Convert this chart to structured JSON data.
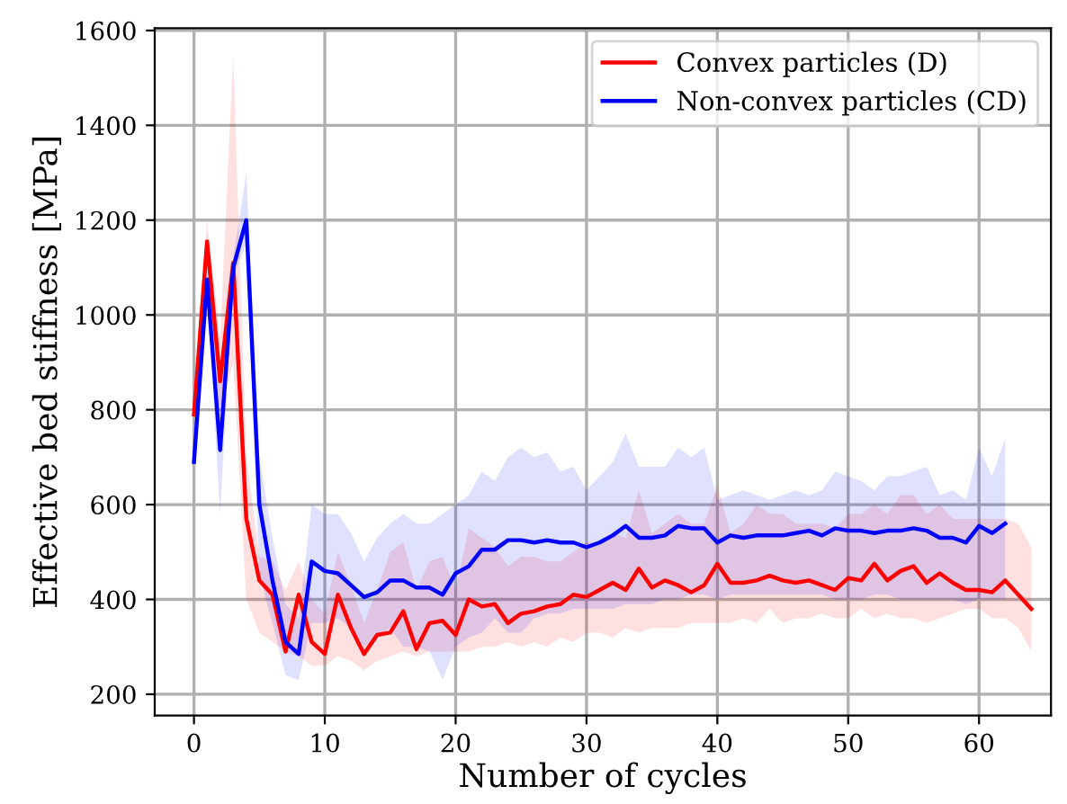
{
  "chart_data": {
    "type": "line",
    "xlabel": "Number of cycles",
    "ylabel": "Effective bed stiffness [MPa]",
    "xlim": [
      -3,
      65.5
    ],
    "ylim": [
      155,
      1605
    ],
    "xticks": [
      0,
      10,
      20,
      30,
      40,
      50,
      60
    ],
    "yticks": [
      200,
      400,
      600,
      800,
      1000,
      1200,
      1400,
      1600
    ],
    "grid": true,
    "legend": "top right",
    "marker": "none",
    "line_style": "solid",
    "series": [
      {
        "name": "Convex particles (D)",
        "color": "#ff0000",
        "x": [
          0,
          1,
          2,
          3,
          4,
          5,
          6,
          7,
          8,
          9,
          10,
          11,
          12,
          13,
          14,
          15,
          16,
          17,
          18,
          19,
          20,
          21,
          22,
          23,
          24,
          25,
          26,
          27,
          28,
          29,
          30,
          31,
          32,
          33,
          34,
          35,
          36,
          37,
          38,
          39,
          40,
          41,
          42,
          43,
          44,
          45,
          46,
          47,
          48,
          49,
          50,
          51,
          52,
          53,
          54,
          55,
          56,
          57,
          58,
          59,
          60,
          61,
          62,
          63,
          64
        ],
        "values": [
          790,
          1155,
          860,
          1110,
          570,
          440,
          410,
          290,
          410,
          310,
          285,
          410,
          340,
          285,
          325,
          330,
          375,
          295,
          350,
          355,
          325,
          400,
          385,
          390,
          350,
          370,
          375,
          385,
          390,
          410,
          405,
          420,
          435,
          420,
          465,
          425,
          440,
          430,
          415,
          430,
          475,
          435,
          435,
          440,
          450,
          440,
          435,
          440,
          430,
          420,
          445,
          440,
          475,
          440,
          460,
          470,
          435,
          455,
          435,
          420,
          420,
          415,
          440,
          410,
          380
        ],
        "lower": [
          790,
          1100,
          800,
          900,
          400,
          330,
          310,
          290,
          280,
          260,
          260,
          280,
          270,
          250,
          270,
          280,
          290,
          280,
          290,
          290,
          290,
          290,
          300,
          300,
          310,
          300,
          310,
          300,
          320,
          310,
          330,
          330,
          320,
          340,
          330,
          340,
          340,
          340,
          350,
          350,
          350,
          350,
          360,
          350,
          380,
          350,
          360,
          360,
          370,
          360,
          360,
          380,
          360,
          370,
          360,
          360,
          350,
          360,
          370,
          380,
          380,
          360,
          360,
          340,
          290
        ],
        "upper": [
          790,
          1200,
          950,
          1550,
          700,
          490,
          480,
          420,
          480,
          400,
          370,
          500,
          430,
          350,
          420,
          500,
          520,
          420,
          480,
          490,
          420,
          550,
          530,
          510,
          470,
          490,
          490,
          480,
          480,
          500,
          520,
          520,
          540,
          530,
          630,
          540,
          560,
          580,
          560,
          560,
          640,
          540,
          560,
          600,
          580,
          580,
          560,
          560,
          560,
          550,
          580,
          580,
          600,
          580,
          620,
          620,
          580,
          600,
          570,
          570,
          570,
          570,
          570,
          560,
          510
        ]
      },
      {
        "name": "Non-convex particles (CD)",
        "color": "#0000ff",
        "x": [
          0,
          1,
          2,
          3,
          4,
          5,
          6,
          7,
          8,
          9,
          10,
          11,
          12,
          13,
          14,
          15,
          16,
          17,
          18,
          19,
          20,
          21,
          22,
          23,
          24,
          25,
          26,
          27,
          28,
          29,
          30,
          31,
          32,
          33,
          34,
          35,
          36,
          37,
          38,
          39,
          40,
          41,
          42,
          43,
          44,
          45,
          46,
          47,
          48,
          49,
          50,
          51,
          52,
          53,
          54,
          55,
          56,
          57,
          58,
          59,
          60,
          61,
          62
        ],
        "values": [
          690,
          1075,
          715,
          1100,
          1200,
          600,
          440,
          310,
          285,
          480,
          460,
          455,
          430,
          405,
          415,
          440,
          440,
          425,
          425,
          410,
          455,
          470,
          505,
          505,
          525,
          525,
          520,
          525,
          520,
          520,
          510,
          520,
          535,
          555,
          530,
          530,
          535,
          555,
          550,
          550,
          520,
          535,
          530,
          535,
          535,
          535,
          540,
          545,
          535,
          550,
          545,
          545,
          540,
          545,
          545,
          550,
          545,
          530,
          530,
          520,
          555,
          540,
          560
        ],
        "lower": [
          690,
          1050,
          580,
          1080,
          1150,
          450,
          350,
          240,
          230,
          350,
          350,
          360,
          340,
          300,
          320,
          340,
          300,
          300,
          290,
          230,
          300,
          320,
          330,
          360,
          330,
          330,
          360,
          370,
          370,
          380,
          380,
          380,
          380,
          390,
          390,
          390,
          400,
          400,
          410,
          410,
          400,
          410,
          410,
          410,
          410,
          410,
          410,
          410,
          410,
          400,
          400,
          400,
          410,
          410,
          400,
          400,
          400,
          400,
          400,
          390,
          400,
          400,
          400
        ],
        "upper": [
          690,
          1100,
          850,
          1120,
          1300,
          700,
          530,
          390,
          360,
          600,
          580,
          580,
          540,
          480,
          530,
          560,
          580,
          560,
          560,
          580,
          600,
          620,
          670,
          650,
          700,
          720,
          700,
          710,
          670,
          680,
          630,
          660,
          690,
          750,
          680,
          680,
          680,
          720,
          700,
          720,
          610,
          620,
          630,
          620,
          610,
          620,
          630,
          620,
          630,
          670,
          660,
          650,
          630,
          660,
          660,
          670,
          680,
          620,
          630,
          610,
          720,
          660,
          740
        ]
      }
    ]
  }
}
